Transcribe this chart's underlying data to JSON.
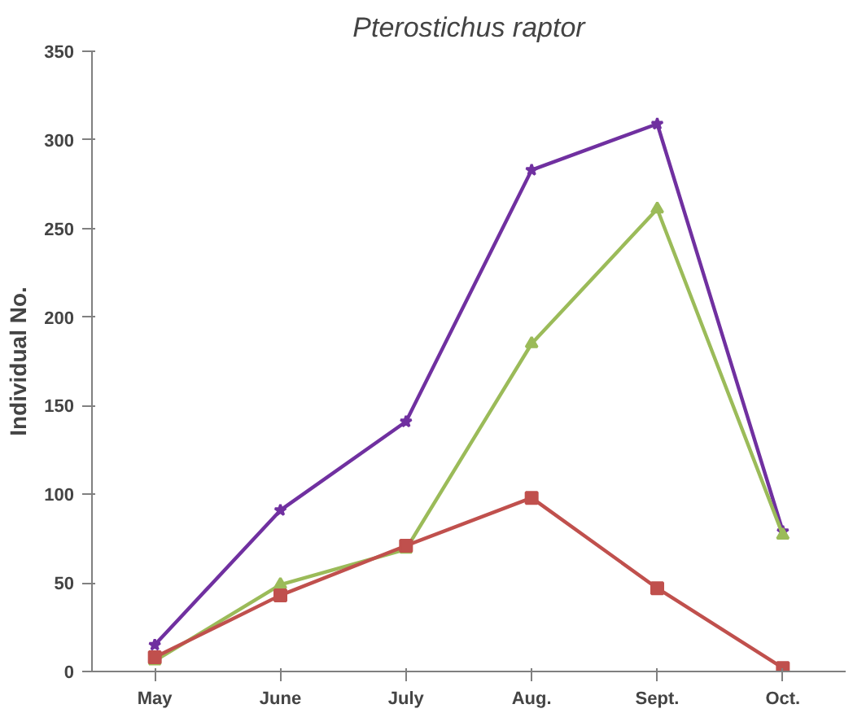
{
  "chart_data": {
    "type": "line",
    "title": "Pterostichus raptor",
    "ylabel": "Individual No.",
    "categories": [
      "May",
      "June",
      "July",
      "Aug.",
      "Sept.",
      "Oct."
    ],
    "ylim": [
      0,
      350
    ],
    "yticks": [
      0,
      50,
      100,
      150,
      200,
      250,
      300,
      350
    ],
    "grid": false,
    "line_style": "solid",
    "series": [
      {
        "color": "#7030a0",
        "marker": "star",
        "values": [
          15,
          91,
          141,
          283,
          309,
          79
        ]
      },
      {
        "color": "#9bbb59",
        "marker": "triangle",
        "values": [
          6,
          49,
          69,
          185,
          261,
          77
        ]
      },
      {
        "color": "#c0504d",
        "marker": "square",
        "values": [
          8,
          43,
          71,
          98,
          47,
          2
        ]
      }
    ]
  }
}
